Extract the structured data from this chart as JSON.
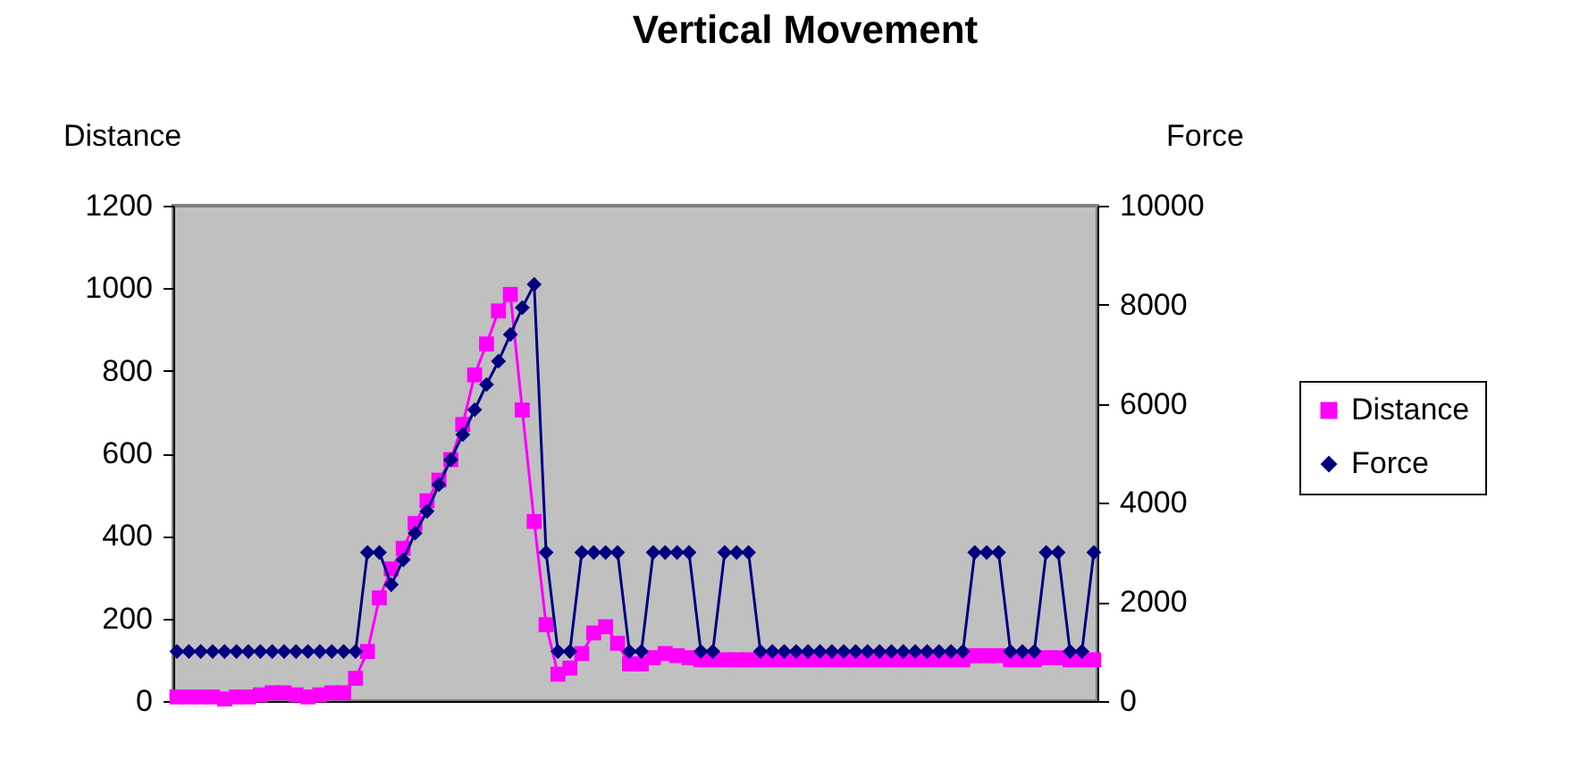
{
  "chart_data": {
    "type": "line",
    "title": "Vertical Movement",
    "ylabel": "Distance",
    "y2label": "Force",
    "categories": [
      null,
      null,
      null,
      null,
      null,
      null,
      null,
      null,
      null,
      null,
      null,
      null,
      null,
      null,
      null,
      null,
      null,
      null,
      null,
      null,
      null,
      null,
      null,
      null,
      null,
      null,
      null,
      null,
      null,
      null,
      null,
      null,
      null,
      null,
      null,
      null,
      null,
      null,
      null,
      null,
      null,
      null,
      null,
      null,
      null,
      null,
      null,
      null,
      null,
      null,
      null,
      null,
      null,
      null,
      null,
      null,
      null,
      null,
      null,
      null,
      null,
      null,
      null,
      null,
      null,
      null,
      null,
      null,
      null,
      null,
      null,
      null,
      null,
      null,
      null,
      null,
      null,
      null
    ],
    "series": [
      {
        "name": "Distance",
        "color": "#ff00ff",
        "marker": "square",
        "values": [
          10,
          10,
          10,
          10,
          5,
          10,
          10,
          15,
          20,
          20,
          15,
          10,
          15,
          20,
          20,
          55,
          120,
          250,
          320,
          370,
          430,
          485,
          535,
          585,
          670,
          790,
          865,
          945,
          985,
          705,
          435,
          185,
          65,
          80,
          115,
          165,
          180,
          140,
          90,
          90,
          105,
          115,
          110,
          105,
          100,
          100,
          100,
          100,
          100,
          100,
          100,
          100,
          100,
          100,
          100,
          100,
          100,
          100,
          100,
          100,
          100,
          100,
          100,
          100,
          100,
          100,
          100,
          110,
          110,
          110,
          100,
          100,
          100,
          105,
          105,
          100,
          100,
          100
        ]
      },
      {
        "name": "Force",
        "color": "#000080",
        "marker": "diamond",
        "axis": "y2",
        "values": [
          1000,
          1000,
          1000,
          1000,
          1000,
          1000,
          1000,
          1000,
          1000,
          1000,
          1000,
          1000,
          1000,
          1000,
          1000,
          1000,
          3000,
          3000,
          2350,
          2850,
          3390,
          3830,
          4370,
          4870,
          5380,
          5880,
          6390,
          6860,
          7400,
          7940,
          8410,
          3000,
          1000,
          1000,
          3000,
          3000,
          3000,
          3000,
          1000,
          1000,
          3000,
          3000,
          3000,
          3000,
          1000,
          1000,
          3000,
          3000,
          3000,
          1000,
          1000,
          1000,
          1000,
          1000,
          1000,
          1000,
          1000,
          1000,
          1000,
          1000,
          1000,
          1000,
          1000,
          1000,
          1000,
          1000,
          1000,
          3000,
          3000,
          3000,
          1000,
          1000,
          1000,
          3000,
          3000,
          1000,
          1000,
          3000
        ]
      }
    ],
    "ylim": [
      0,
      1200
    ],
    "yticks": [
      0,
      200,
      400,
      600,
      800,
      1000,
      1200
    ],
    "y2lim": [
      0,
      10000
    ],
    "y2ticks": [
      0,
      2000,
      4000,
      6000,
      8000,
      10000
    ],
    "grid": false,
    "legend": "right"
  }
}
